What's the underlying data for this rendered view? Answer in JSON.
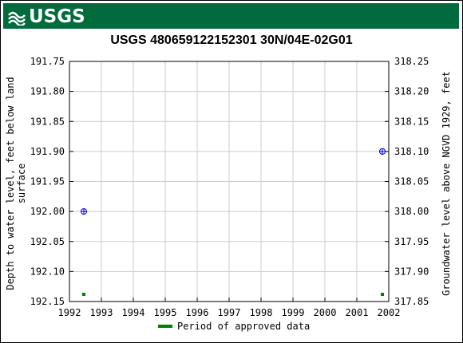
{
  "header": {
    "logo_text": "USGS",
    "logo_icon": "usgs-wave-icon",
    "color": "#006b3c"
  },
  "chart_data": {
    "type": "scatter",
    "title": "USGS 480659122152301 30N/04E-02G01",
    "ylabel_left": "Depth to water level, feet below land\nsurface",
    "ylabel_right": "Groundwater level above NGVD 1929, feet",
    "x_ticks": [
      "1992",
      "1993",
      "1994",
      "1995",
      "1996",
      "1997",
      "1998",
      "1999",
      "2000",
      "2001",
      "2002"
    ],
    "xlim": [
      1992,
      2002
    ],
    "y_left_ticks": [
      "191.75",
      "191.80",
      "191.85",
      "191.90",
      "191.95",
      "192.00",
      "192.05",
      "192.10",
      "192.15"
    ],
    "y_right_ticks": [
      "318.25",
      "318.20",
      "318.15",
      "318.10",
      "318.05",
      "318.00",
      "317.95",
      "317.90",
      "317.85"
    ],
    "ylim_left": [
      191.75,
      192.15
    ],
    "ylim_right": [
      318.25,
      317.85
    ],
    "grid": true,
    "points": [
      {
        "date": "1992-06",
        "x": 1992.45,
        "depth": 192.0
      },
      {
        "date": "2001-10",
        "x": 2001.8,
        "depth": 191.9
      }
    ],
    "approved_periods": [
      {
        "x": 1992.45
      },
      {
        "x": 2001.8
      }
    ],
    "point_color": "#0000cc",
    "approved_color": "#008000",
    "legend": {
      "label": "Period of approved data",
      "placement": "bottom-center"
    }
  }
}
